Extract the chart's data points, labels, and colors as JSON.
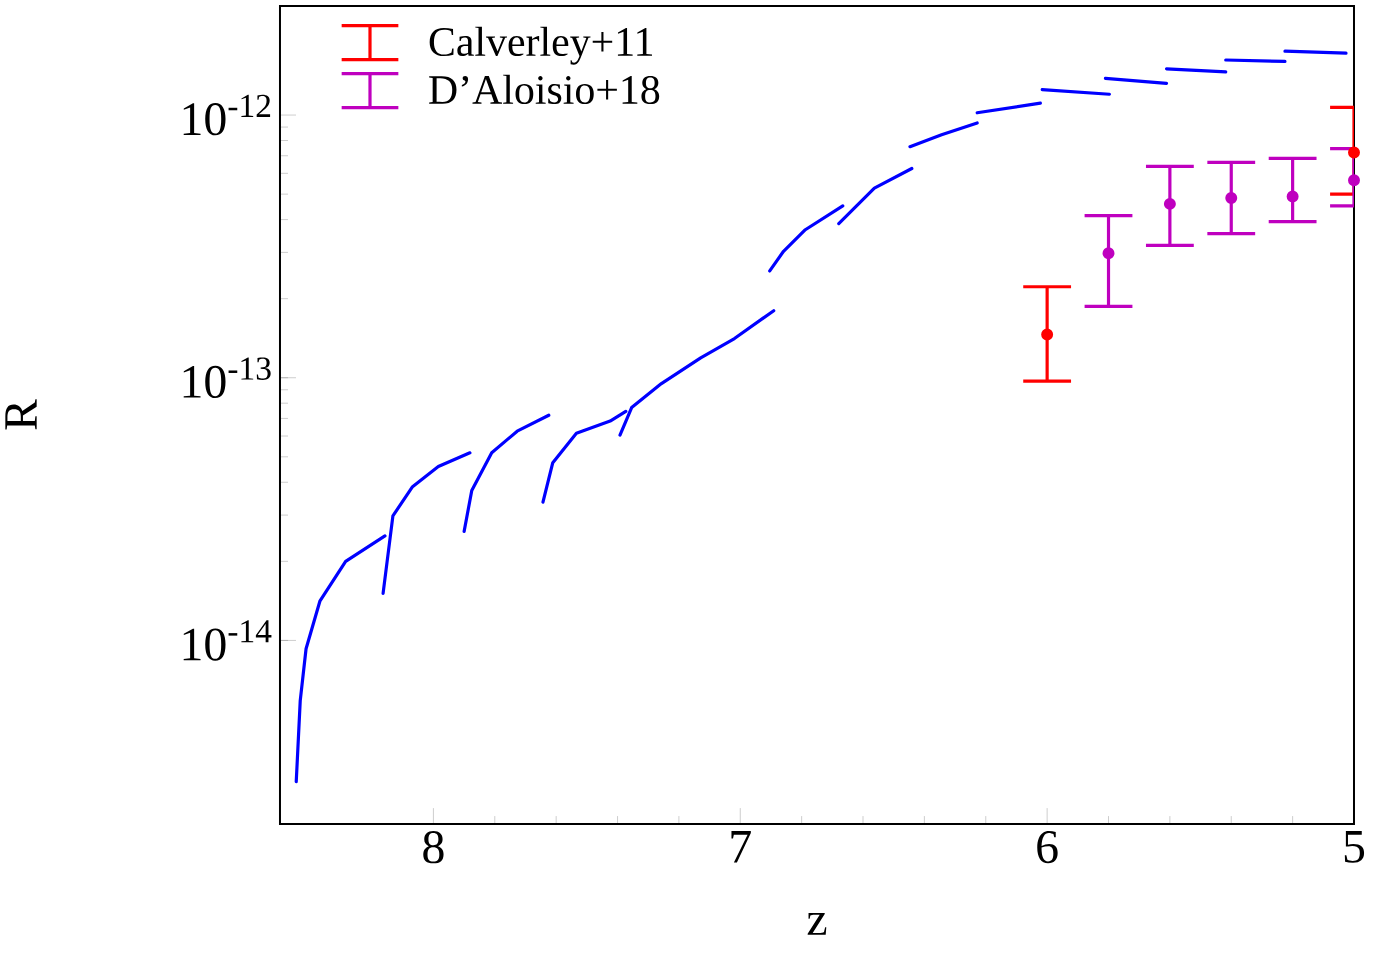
{
  "chart_data": {
    "type": "line",
    "xlabel": "z",
    "ylabel": "R",
    "log": "y",
    "legend": "top left",
    "xlim": [
      8.5,
      5
    ],
    "xticks": [
      8,
      7,
      6,
      5
    ],
    "ylim": [
      2e-15,
      2.6e-12
    ],
    "yticks": [
      {
        "value": 1e-14,
        "label": "10$^{-14}$"
      },
      {
        "value": 1e-13,
        "label": "10$^{-13}$"
      },
      {
        "value": 1e-12,
        "label": "10$^{-12}$"
      }
    ],
    "series": [
      {
        "color": "#0000ff",
        "marker": "none",
        "x": [
          8.447,
          8.434,
          8.415,
          8.37,
          8.286,
          8.158,
          null,
          8.164,
          8.132,
          8.068,
          7.984,
          7.881,
          null,
          7.9,
          7.875,
          7.81,
          7.727,
          7.624,
          null,
          7.643,
          7.611,
          7.534,
          7.424,
          7.373,
          null,
          7.392,
          7.354,
          7.257,
          7.129,
          7.019,
          6.891,
          null,
          6.904,
          6.859,
          6.788,
          6.666,
          null,
          6.679,
          6.563,
          6.441,
          null,
          6.447,
          6.344,
          6.228,
          null,
          6.228,
          6.022,
          null,
          6.016,
          5.797,
          null,
          5.81,
          5.611,
          null,
          5.611,
          5.418,
          null,
          5.418,
          5.225,
          null,
          5.225,
          5.026
        ],
        "values": [
          2.9e-15,
          5.9e-15,
          9.3e-15,
          1.41e-14,
          2e-14,
          2.5e-14,
          null,
          1.51e-14,
          2.98e-14,
          3.85e-14,
          4.59e-14,
          5.18e-14,
          null,
          2.6e-14,
          3.72e-14,
          5.18e-14,
          6.26e-14,
          7.2e-14,
          null,
          3.36e-14,
          4.75e-14,
          6.15e-14,
          6.84e-14,
          7.45e-14,
          null,
          6.05e-14,
          7.7e-14,
          9.5e-14,
          1.19e-13,
          1.41e-13,
          1.8e-13,
          null,
          2.55e-13,
          3.03e-13,
          3.66e-13,
          4.51e-13,
          null,
          3.86e-13,
          5.27e-13,
          6.26e-13,
          null,
          7.58e-13,
          8.41e-13,
          9.33e-13,
          null,
          1.02e-12,
          1.11e-12,
          null,
          1.25e-12,
          1.2e-12,
          null,
          1.38e-12,
          1.32e-12,
          null,
          1.5e-12,
          1.46e-12,
          null,
          1.62e-12,
          1.6e-12,
          null,
          1.75e-12,
          1.72e-12
        ]
      },
      {
        "type": "scatter",
        "name": "Calverley+11",
        "color": "#ff0000",
        "marker": "circle",
        "x": [
          6,
          5
        ],
        "values": [
          1.46e-13,
          7.2e-13
        ],
        "errors": [
          [
            9.7e-14,
            2.22e-13
          ],
          [
            5e-13,
            1.07e-12
          ]
        ]
      },
      {
        "type": "scatter",
        "name": "D’Aloisio+18",
        "color": "#bf00bf",
        "marker": "circle",
        "x": [
          5.8,
          5.6,
          5.4,
          5.2,
          5.0
        ],
        "values": [
          2.98e-13,
          4.59e-13,
          4.83e-13,
          4.9e-13,
          5.65e-13
        ],
        "errors": [
          [
            1.87e-13,
            4.14e-13
          ],
          [
            3.19e-13,
            6.38e-13
          ],
          [
            3.54e-13,
            6.6e-13
          ],
          [
            3.93e-13,
            6.84e-13
          ],
          [
            4.51e-13,
            7.45e-13
          ]
        ]
      }
    ]
  }
}
